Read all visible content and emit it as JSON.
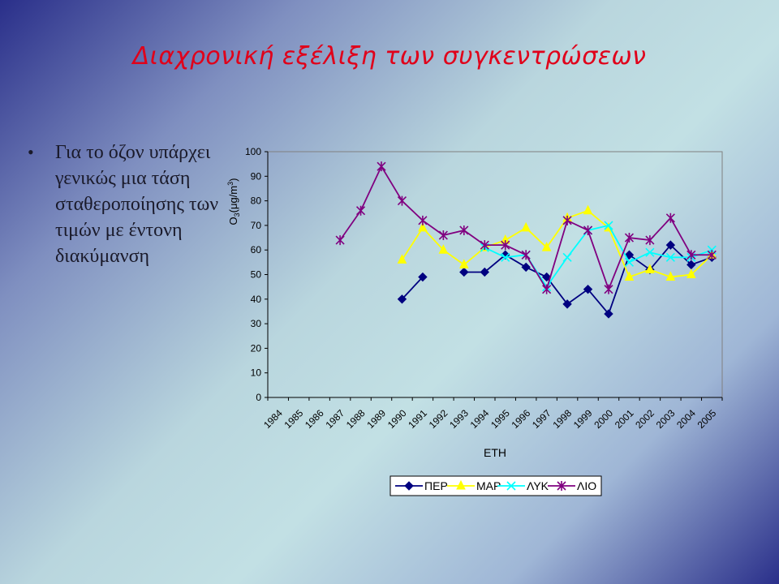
{
  "slide": {
    "title": "Διαχρονική εξέλιξη των συγκεντρώσεων",
    "bullet": "Για το όζον υπάρχει γενικώς μια τάση σταθεροποίησης των τιμών με έντονη διακύμανση"
  },
  "chart_data": {
    "type": "line",
    "xlabel": "ΕΤΗ",
    "ylabel": "O3(μg/m3)",
    "ylim": [
      0,
      100
    ],
    "yticks": [
      0,
      10,
      20,
      30,
      40,
      50,
      60,
      70,
      80,
      90,
      100
    ],
    "categories": [
      "1984",
      "1985",
      "1986",
      "1987",
      "1988",
      "1989",
      "1990",
      "1991",
      "1992",
      "1993",
      "1994",
      "1995",
      "1996",
      "1997",
      "1998",
      "1999",
      "2000",
      "2001",
      "2002",
      "2003",
      "2004",
      "2005"
    ],
    "legend_position": "bottom-center",
    "grid": false,
    "series": [
      {
        "name": "ΠΕΡ",
        "color": "#000080",
        "marker": "diamond",
        "values": [
          null,
          null,
          null,
          null,
          null,
          null,
          40,
          49,
          null,
          51,
          51,
          58,
          53,
          49,
          38,
          44,
          34,
          58,
          52,
          62,
          54,
          57
        ]
      },
      {
        "name": "ΜΑΡ",
        "color": "#ffff00",
        "marker": "triangle",
        "values": [
          null,
          null,
          null,
          null,
          null,
          null,
          56,
          69,
          60,
          54,
          61,
          64,
          69,
          61,
          73,
          76,
          69,
          49,
          52,
          49,
          50,
          58
        ]
      },
      {
        "name": "ΛΥΚ",
        "color": "#00ffff",
        "marker": "x",
        "values": [
          null,
          null,
          null,
          null,
          null,
          null,
          null,
          null,
          null,
          null,
          61,
          57,
          58,
          45,
          57,
          68,
          70,
          55,
          59,
          57,
          57,
          60
        ]
      },
      {
        "name": "ΛΙΟ",
        "color": "#800080",
        "marker": "star",
        "values": [
          null,
          null,
          null,
          64,
          76,
          94,
          80,
          72,
          66,
          68,
          62,
          62,
          58,
          44,
          72,
          68,
          44,
          65,
          64,
          73,
          58,
          58
        ]
      }
    ]
  }
}
